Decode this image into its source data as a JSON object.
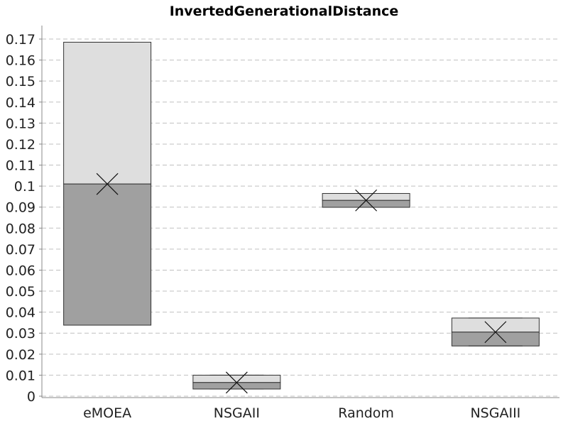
{
  "chart_data": {
    "type": "box",
    "title": "InvertedGenerationalDistance",
    "xlabel": "",
    "ylabel": "",
    "ylim": [
      0,
      0.17
    ],
    "yticks": [
      0,
      0.01,
      0.02,
      0.03,
      0.04,
      0.05,
      0.06,
      0.07,
      0.08,
      0.09,
      0.1,
      0.11,
      0.12,
      0.13,
      0.14,
      0.15,
      0.16,
      0.17
    ],
    "grid": true,
    "categories": [
      "eMOEA",
      "NSGAII",
      "Random",
      "NSGAIII"
    ],
    "boxes": [
      {
        "category": "eMOEA",
        "min": 0.0338,
        "q1": 0.0338,
        "median": 0.101,
        "q3": 0.1685,
        "max": 0.1685,
        "mean": 0.101
      },
      {
        "category": "NSGAII",
        "min": 0.0034,
        "q1": 0.0034,
        "median": 0.0065,
        "q3": 0.01,
        "max": 0.01,
        "mean": 0.0065
      },
      {
        "category": "Random",
        "min": 0.0899,
        "q1": 0.0899,
        "median": 0.0932,
        "q3": 0.0965,
        "max": 0.0965,
        "mean": 0.0932
      },
      {
        "category": "NSGAIII",
        "min": 0.0239,
        "q1": 0.0239,
        "median": 0.0305,
        "q3": 0.0372,
        "max": 0.0372,
        "mean": 0.0305
      }
    ],
    "colors": {
      "upper_box": "#dedede",
      "lower_box": "#a0a0a0",
      "outline": "#333333"
    }
  }
}
